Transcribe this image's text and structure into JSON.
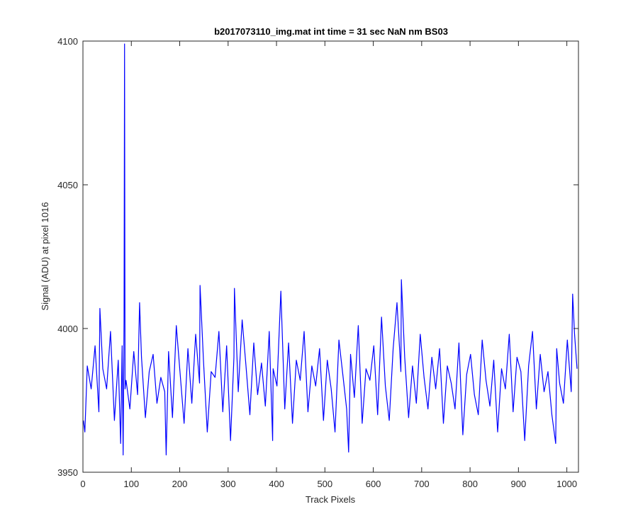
{
  "chart_data": {
    "type": "line",
    "title": "b2017073110_img.mat int time = 31 sec  NaN nm BS03",
    "xlabel": "Track Pixels",
    "ylabel": "Signal (ADU) at pixel 1016",
    "xlim": [
      0,
      1024
    ],
    "ylim": [
      3950,
      4100
    ],
    "xticks": [
      0,
      100,
      200,
      300,
      400,
      500,
      600,
      700,
      800,
      900,
      1000
    ],
    "yticks": [
      3950,
      4000,
      4050,
      4100
    ],
    "grid": false,
    "line_color": "#0000ff",
    "series": [
      {
        "sampling": "every 8th pixel shown, plus notable extremes",
        "x": [
          1,
          4,
          9,
          17,
          25,
          33,
          35,
          41,
          49,
          57,
          65,
          73,
          78,
          81,
          83,
          85,
          86,
          87,
          89,
          97,
          105,
          113,
          117,
          121,
          129,
          137,
          145,
          153,
          161,
          169,
          172,
          177,
          185,
          193,
          201,
          209,
          217,
          225,
          233,
          241,
          242,
          249,
          257,
          265,
          273,
          281,
          289,
          297,
          305,
          312,
          313,
          321,
          329,
          337,
          345,
          353,
          361,
          369,
          377,
          385,
          392,
          393,
          401,
          409,
          417,
          425,
          433,
          441,
          449,
          457,
          465,
          473,
          481,
          489,
          497,
          505,
          513,
          521,
          529,
          537,
          545,
          549,
          553,
          561,
          569,
          577,
          585,
          593,
          601,
          609,
          617,
          625,
          633,
          641,
          649,
          657,
          658,
          665,
          673,
          681,
          689,
          697,
          705,
          713,
          721,
          729,
          737,
          745,
          753,
          761,
          769,
          777,
          785,
          793,
          801,
          809,
          817,
          825,
          833,
          841,
          849,
          857,
          865,
          873,
          881,
          889,
          897,
          905,
          913,
          921,
          929,
          937,
          945,
          953,
          961,
          969,
          977,
          979,
          985,
          993,
          1001,
          1009,
          1012,
          1016,
          1021
        ],
        "y": [
          3968,
          3964,
          3987,
          3979,
          3994,
          3971,
          4007,
          3986,
          3979,
          3999,
          3968,
          3989,
          3960,
          3994,
          3956,
          4003,
          4099,
          3979,
          3982,
          3972,
          3992,
          3977,
          4009,
          3990,
          3969,
          3985,
          3991,
          3974,
          3983,
          3978,
          3956,
          3992,
          3969,
          4001,
          3984,
          3967,
          3993,
          3974,
          3998,
          3981,
          4015,
          3989,
          3964,
          3985,
          3983,
          3999,
          3971,
          3994,
          3961,
          3990,
          4014,
          3978,
          4003,
          3987,
          3970,
          3995,
          3977,
          3988,
          3973,
          3999,
          3961,
          3986,
          3980,
          4013,
          3972,
          3995,
          3967,
          3989,
          3982,
          3999,
          3971,
          3987,
          3980,
          3993,
          3968,
          3989,
          3979,
          3964,
          3996,
          3984,
          3972,
          3957,
          3991,
          3976,
          4001,
          3967,
          3986,
          3982,
          3994,
          3970,
          4004,
          3980,
          3968,
          3993,
          4009,
          3985,
          4017,
          3990,
          3969,
          3987,
          3974,
          3998,
          3983,
          3972,
          3990,
          3979,
          3993,
          3967,
          3987,
          3981,
          3972,
          3995,
          3963,
          3984,
          3991,
          3977,
          3970,
          3996,
          3982,
          3973,
          3989,
          3964,
          3986,
          3979,
          3998,
          3971,
          3990,
          3985,
          3961,
          3987,
          3999,
          3972,
          3991,
          3978,
          3985,
          3970,
          3960,
          3993,
          3981,
          3974,
          3996,
          3978,
          4012,
          3998,
          3986
        ]
      }
    ]
  }
}
